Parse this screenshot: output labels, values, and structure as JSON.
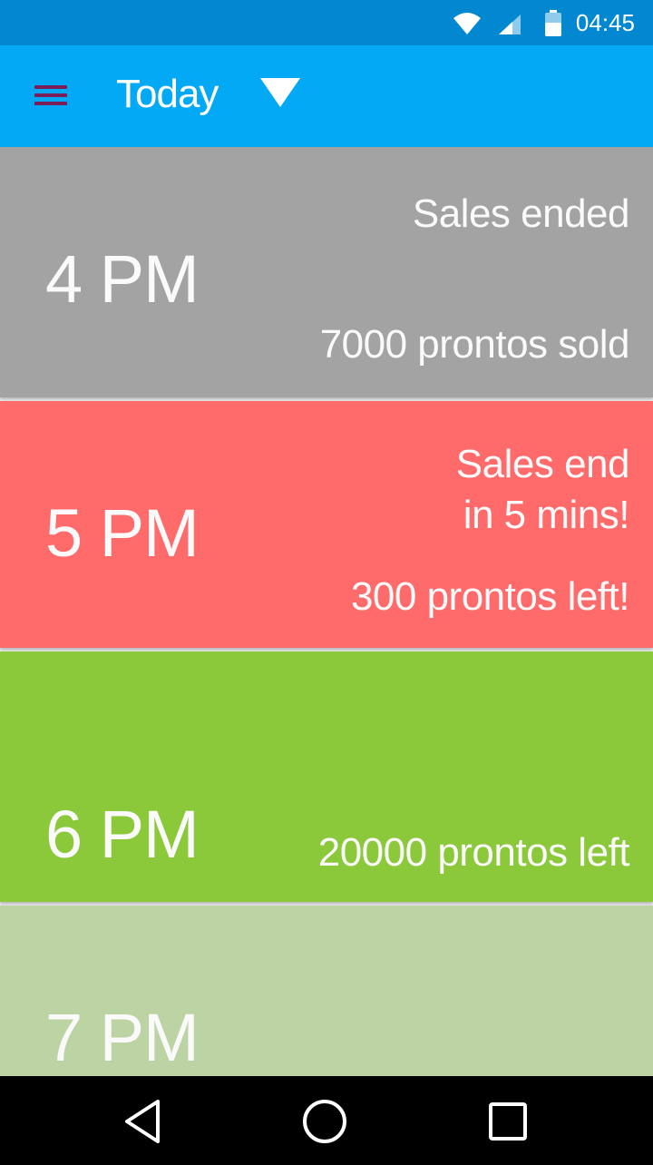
{
  "status_bar": {
    "time": "04:45",
    "icons": [
      "wifi-icon",
      "signal-icon",
      "battery-icon"
    ]
  },
  "app_bar": {
    "title": "Today",
    "menu_icon": "hamburger-menu-icon",
    "dropdown_icon": "caret-down-icon",
    "colors": {
      "status_bar": "#0288d1",
      "app_bar": "#03a9f4",
      "menu_icon": "#7b1f5a"
    }
  },
  "slots": [
    {
      "time": "4 PM",
      "status": "Sales ended",
      "count": "7000 prontos sold",
      "color": "#a3a3a3"
    },
    {
      "time": "5 PM",
      "status": "Sales end\nin 5 mins!",
      "count": "300 prontos left!",
      "color": "#ff6b6b"
    },
    {
      "time": "6 PM",
      "status": "",
      "count": "20000 prontos left",
      "color": "#8bc83a"
    },
    {
      "time": "7 PM",
      "status": "",
      "count": "",
      "color": "#bcd3a4"
    }
  ],
  "nav_bar": {
    "buttons": [
      "back-icon",
      "home-icon",
      "recents-icon"
    ]
  }
}
